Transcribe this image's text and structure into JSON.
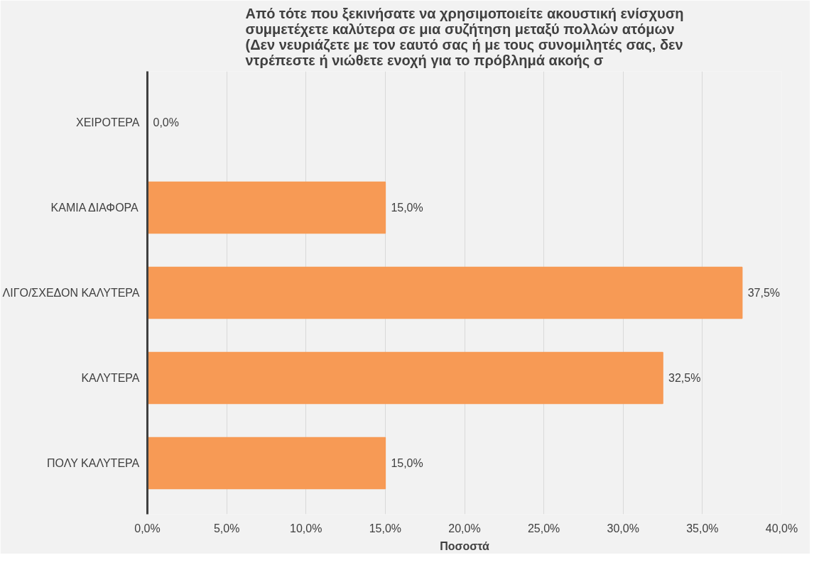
{
  "chart_data": {
    "type": "bar",
    "orientation": "horizontal",
    "title": "Από τότε που ξεκινήσατε να χρησιμοποιείτε ακουστική ενίσχυση\nσυμμετέχετε καλύτερα σε μια συζήτηση μεταξύ πολλών ατόμων\n(Δεν νευριάζετε με τον εαυτό σας ή με τους συνομιλητές σας, δεν\nντρέπεστε ή νιώθετε ενοχή για το πρόβλημά ακοής σ",
    "xlabel": "Ποσοστά",
    "categories": [
      "ΧΕΙΡΟΤΕΡΑ",
      "ΚΑΜΙΑ ΔΙΑΦΟΡΑ",
      "ΛΙΓΟ/ΣΧΕΔΟΝ ΚΑΛΥΤΕΡΑ",
      "ΚΑΛΥΤΕΡΑ",
      "ΠΟΛΥ ΚΑΛΥΤΕΡΑ"
    ],
    "values": [
      0,
      15,
      37.5,
      32.5,
      15
    ],
    "value_labels": [
      "0,0%",
      "15,0%",
      "37,5%",
      "32,5%",
      "15,0%"
    ],
    "color": "#f79a55",
    "xlim": [
      0,
      40
    ],
    "xticks": [
      {
        "value": 0,
        "label": "0,0%"
      },
      {
        "value": 5,
        "label": "5,0%"
      },
      {
        "value": 10,
        "label": "10,0%"
      },
      {
        "value": 15,
        "label": "15,0%"
      },
      {
        "value": 20,
        "label": "20,0%"
      },
      {
        "value": 25,
        "label": "25,0%"
      },
      {
        "value": 30,
        "label": "30,0%"
      },
      {
        "value": 35,
        "label": "35,0%"
      },
      {
        "value": 40,
        "label": "40,0%"
      }
    ],
    "grid": "x"
  }
}
